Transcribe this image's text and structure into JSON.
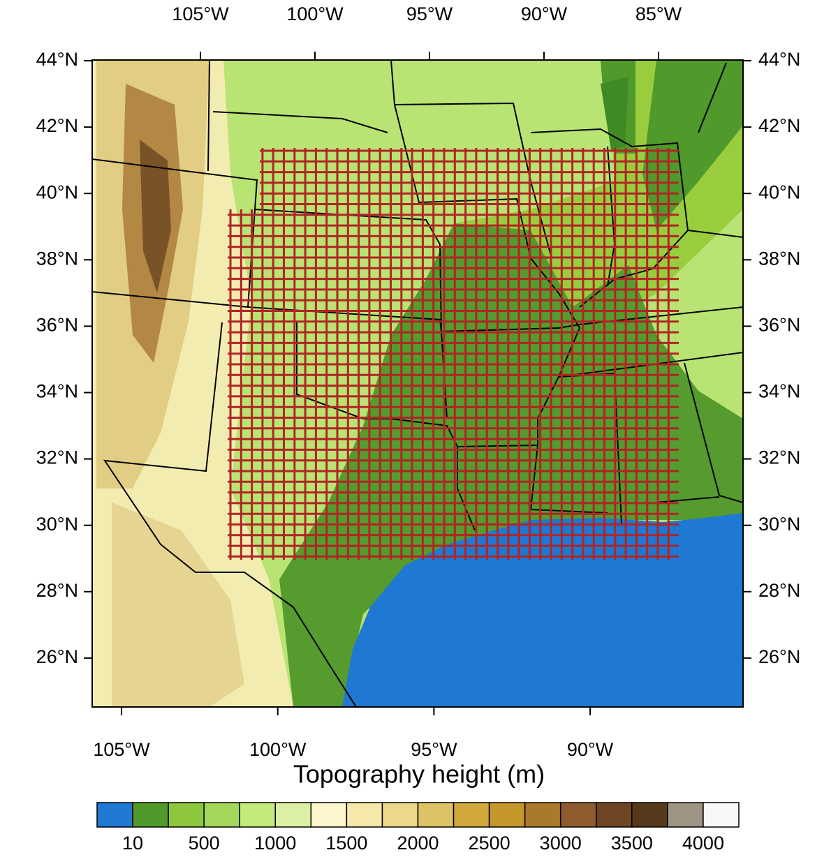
{
  "map": {
    "top_lon_labels": [
      "105°W",
      "100°W",
      "95°W",
      "90°W",
      "85°W"
    ],
    "bottom_lon_labels": [
      "105°W",
      "100°W",
      "95°W",
      "90°W"
    ],
    "lat_labels": [
      "44°N",
      "42°N",
      "40°N",
      "38°N",
      "36°N",
      "34°N",
      "32°N",
      "30°N",
      "28°N",
      "26°N"
    ],
    "grid_color": "#b02525",
    "colorbar": {
      "title": "Topography height (m)",
      "colors": [
        "#1f78d2",
        "#4f9a2a",
        "#8cc63c",
        "#a5d85a",
        "#c2eb7c",
        "#dcf0a4",
        "#fcf6cc",
        "#f5e8aa",
        "#ebd88a",
        "#ddc266",
        "#d0a83c",
        "#c5962c",
        "#a97a2c",
        "#8e5c2e",
        "#704523",
        "#56391b",
        "#9e9483",
        "#f8f8fa"
      ],
      "labels": [
        10,
        500,
        1000,
        1500,
        2000,
        2500,
        3000,
        3500,
        4000
      ]
    }
  }
}
